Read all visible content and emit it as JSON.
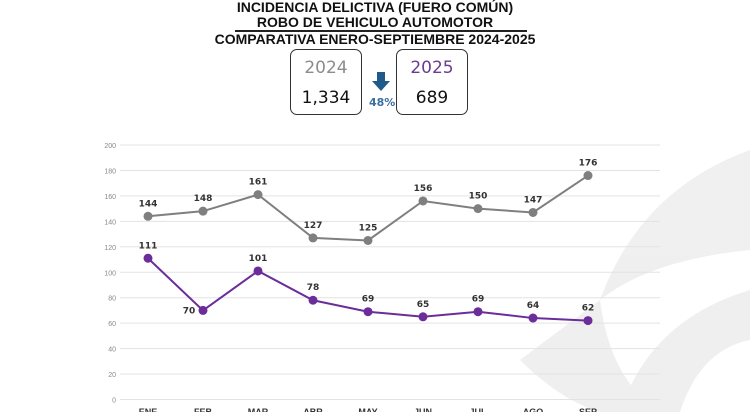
{
  "header": {
    "title_line1": "INCIDENCIA DELICTIVA (FUERO COMÚN)",
    "title_line2": "ROBO DE VEHICULO AUTOMOTOR",
    "title_line3": "COMPARATIVA ENERO-SEPTIEMBRE 2024-2025"
  },
  "summary": {
    "year_a": "2024",
    "total_a": "1,334",
    "year_b": "2025",
    "total_b": "689",
    "change": "48%",
    "change_icon": "arrow-down-icon",
    "change_color": "#1f5a8a"
  },
  "chart_data": {
    "type": "line",
    "categories": [
      "ENE",
      "FEB",
      "MAR",
      "ABR",
      "MAY",
      "JUN",
      "JUL",
      "AGO",
      "SEP"
    ],
    "ylim": [
      0,
      200
    ],
    "yticks": [
      0,
      20,
      40,
      60,
      80,
      100,
      120,
      140,
      160,
      180,
      200
    ],
    "grid": true,
    "series": [
      {
        "values": [
          144,
          148,
          161,
          127,
          125,
          156,
          150,
          147,
          176
        ],
        "color": "#7f7f7f"
      },
      {
        "values": [
          111,
          70,
          101,
          78,
          69,
          65,
          69,
          64,
          62
        ],
        "color": "#6b2d9a"
      }
    ]
  }
}
